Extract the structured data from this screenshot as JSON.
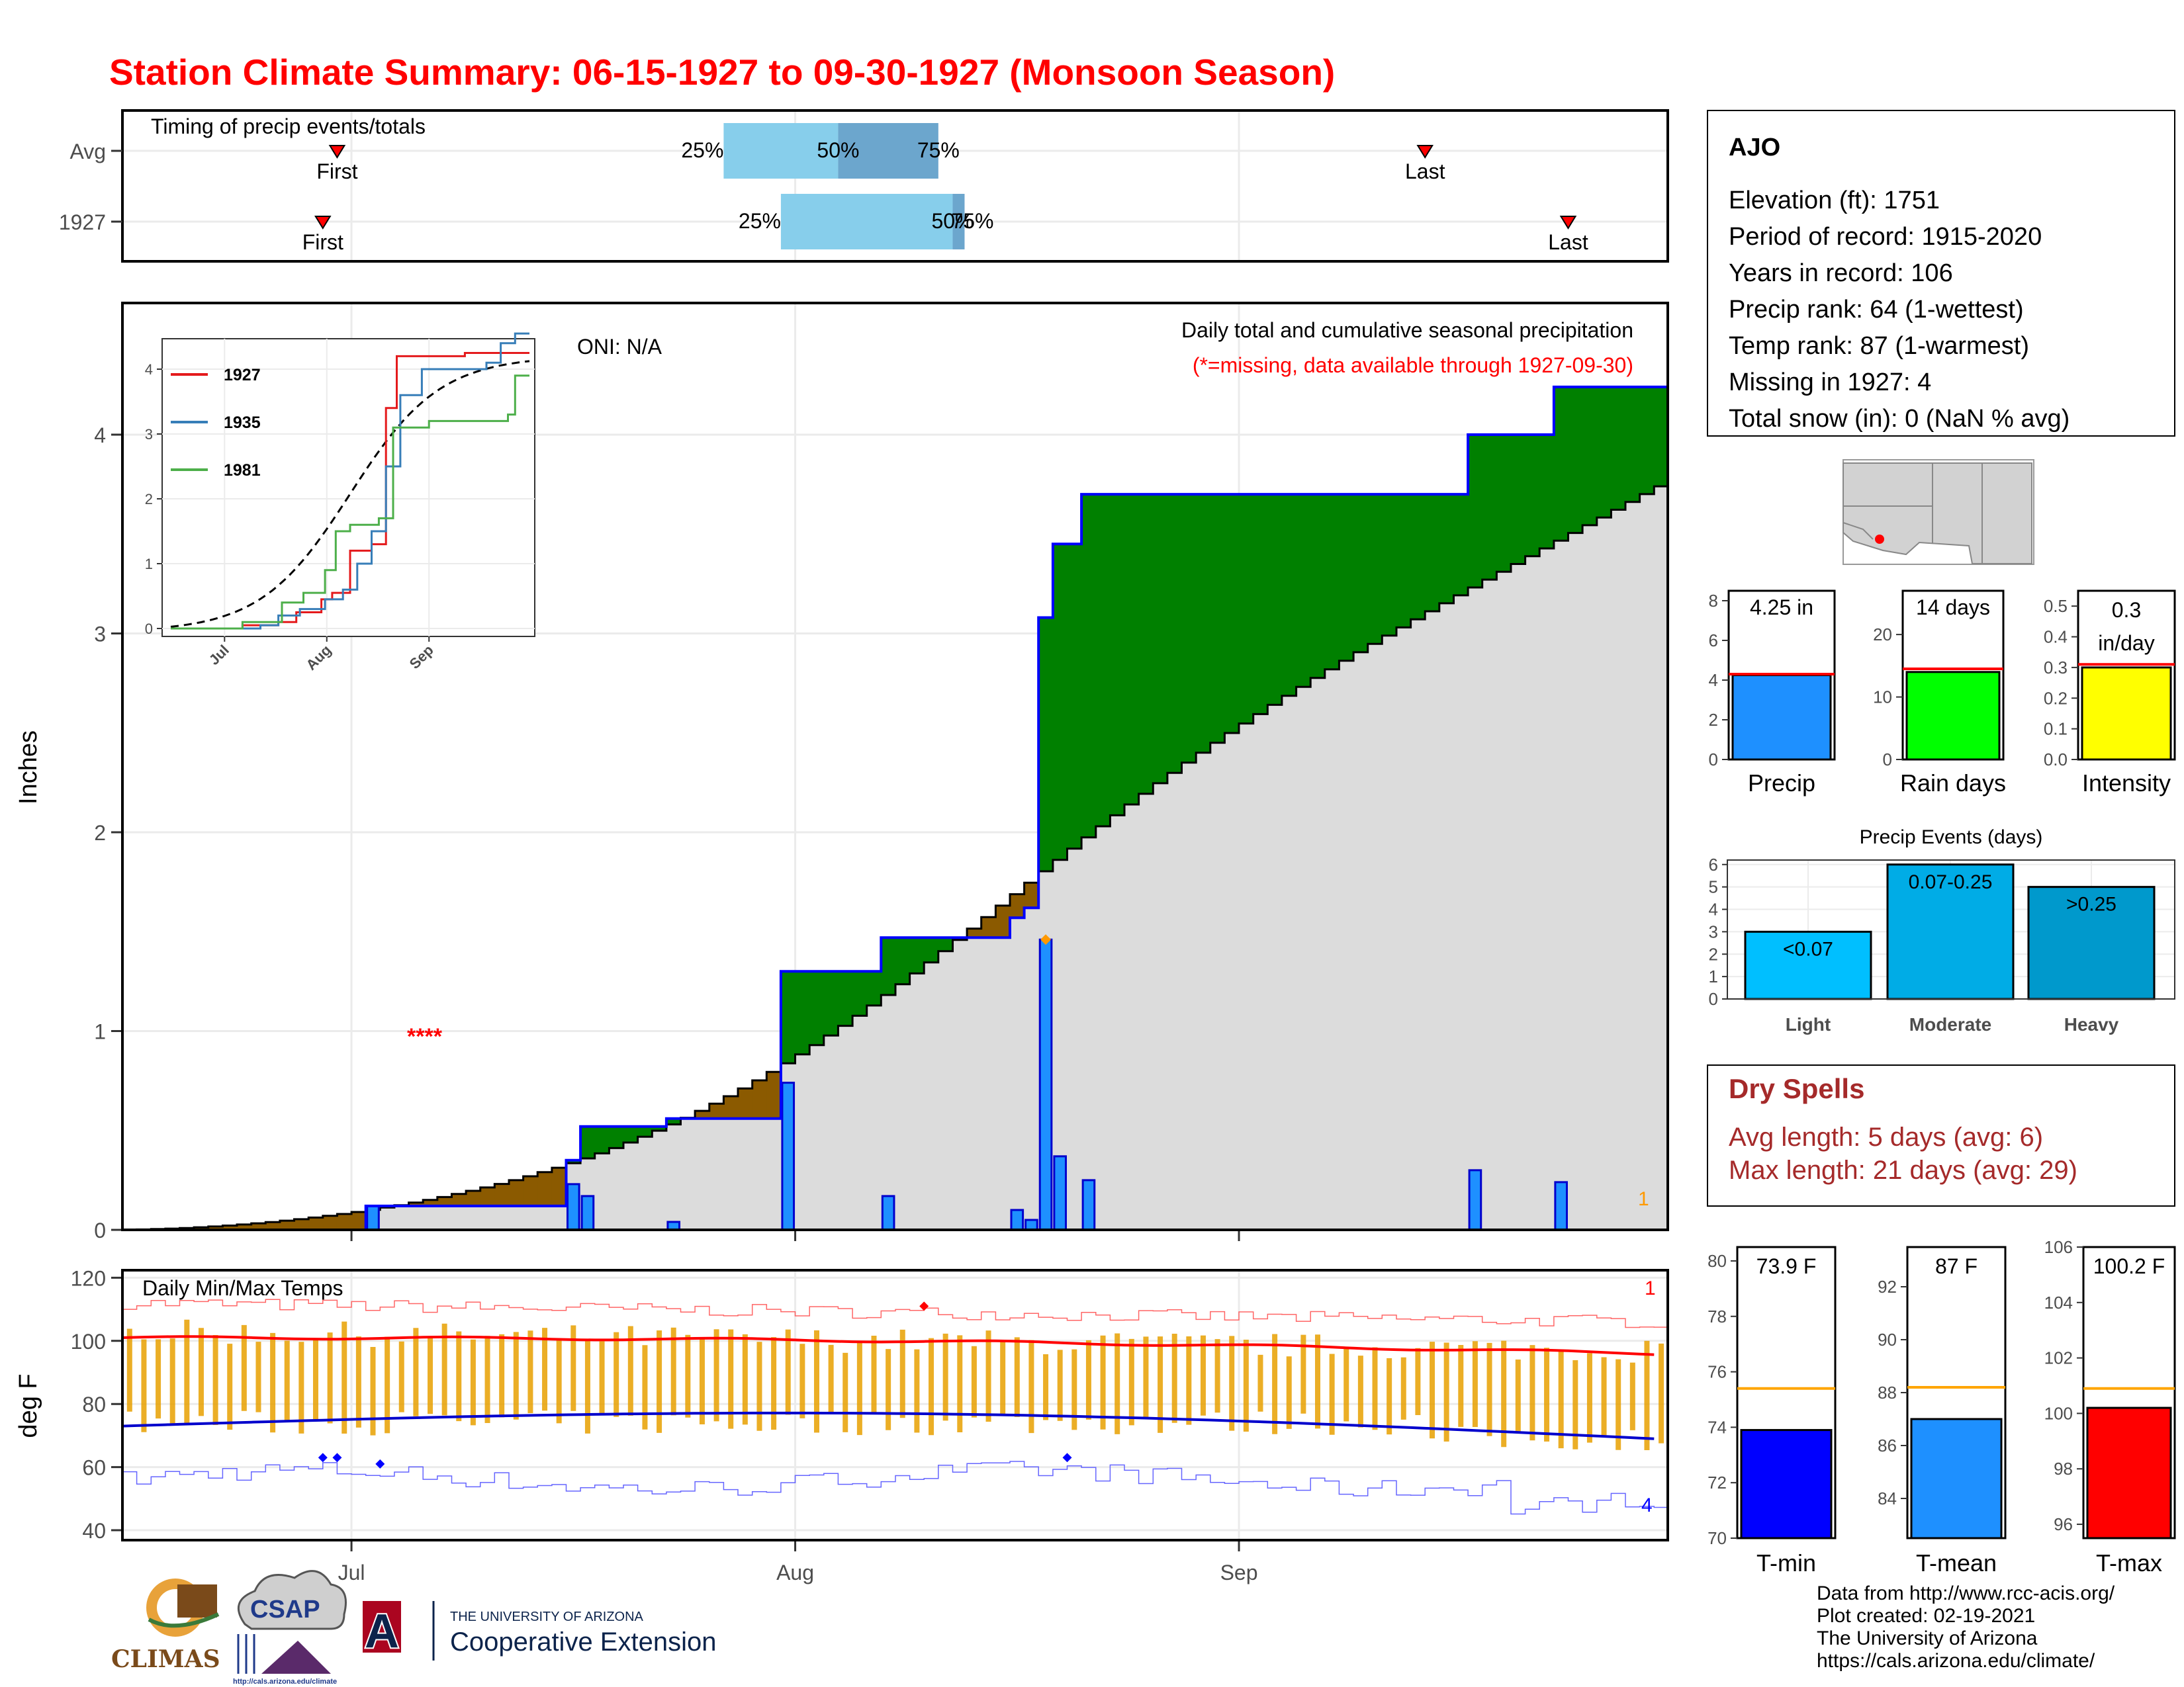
{
  "title": "Station Climate Summary: 06-15-1927 to 09-30-1927 (Monsoon Season)",
  "timing_panel": {
    "label": "Timing of precip events/totals",
    "rows": [
      {
        "name": "Avg",
        "first": "06-30",
        "p25": "07-27",
        "p50": "08-04",
        "p75": "08-11",
        "last": "09-14",
        "first_label": "First",
        "last_label": "Last"
      },
      {
        "name": "1927",
        "first": "06-29",
        "p25": "07-31",
        "p50": "08-12",
        "p75": "08-12",
        "last": "09-24",
        "first_label": "First",
        "last_label": "Last"
      }
    ],
    "pct_labels": [
      "25%",
      "50%",
      "75%"
    ]
  },
  "precip_panel": {
    "ylabel": "Inches",
    "oni": "ONI: N/A",
    "title": "Daily total and cumulative seasonal precipitation",
    "subtitle": "(*=missing, data available through 1927-09-30)",
    "missing_marker": "****",
    "corner_count": "1",
    "yticks": [
      0,
      1,
      2,
      3,
      4
    ],
    "xticks": [
      "Jul",
      "Aug",
      "Sep"
    ],
    "normal_cumulative_end": 3.74,
    "season_total": 4.25,
    "daily_bars": [
      {
        "date": "07-02",
        "value": 0.12
      },
      {
        "date": "07-16",
        "value": 0.23
      },
      {
        "date": "07-17",
        "value": 0.17
      },
      {
        "date": "07-23",
        "value": 0.04
      },
      {
        "date": "07-31",
        "value": 0.74
      },
      {
        "date": "08-07",
        "value": 0.17
      },
      {
        "date": "08-16",
        "value": 0.1
      },
      {
        "date": "08-17",
        "value": 0.05
      },
      {
        "date": "08-18",
        "value": 1.46
      },
      {
        "date": "08-19",
        "value": 0.37
      },
      {
        "date": "08-21",
        "value": 0.25
      },
      {
        "date": "09-17",
        "value": 0.3
      },
      {
        "date": "09-23",
        "value": 0.24
      }
    ],
    "max_marker": {
      "date": "08-18",
      "value": 1.46
    }
  },
  "inset": {
    "legend": [
      {
        "name": "1927",
        "color": "#e41a1c"
      },
      {
        "name": "1935",
        "color": "#377eb8"
      },
      {
        "name": "1981",
        "color": "#4daf4a"
      }
    ],
    "yticks": [
      0,
      1,
      2,
      3,
      4
    ],
    "xticks": [
      "Jul",
      "Aug",
      "Sep"
    ]
  },
  "temp_panel": {
    "label": "Daily Min/Max Temps",
    "ylabel": "deg F",
    "yticks": [
      40,
      60,
      80,
      100,
      120
    ],
    "xticks": [
      "Jul",
      "Aug",
      "Sep"
    ],
    "corner_high": "1",
    "corner_low": "4"
  },
  "station": {
    "name": "AJO",
    "lines": [
      "Elevation (ft): 1751",
      "Period of record: 1915-2020",
      "Years in record: 106",
      "Precip rank: 64 (1-wettest)",
      "Temp rank: 87 (1-warmest)",
      "Missing in 1927: 4",
      "Total snow (in): 0 (NaN % avg)"
    ]
  },
  "summary_bars": [
    {
      "label": "Precip",
      "value_text": "4.25 in",
      "value": 4.25,
      "avg": 4.3,
      "max": 8.5,
      "ticks": [
        0,
        2,
        4,
        6,
        8
      ],
      "color": "#1e90ff"
    },
    {
      "label": "Rain days",
      "value_text": "14 days",
      "value": 14,
      "avg": 14.5,
      "max": 27,
      "ticks": [
        0,
        10,
        20
      ],
      "color": "#00ff00"
    },
    {
      "label": "Intensity",
      "value_text": "0.3 in/day",
      "value_line1": "0.3",
      "value_line2": "in/day",
      "value": 0.3,
      "avg": 0.31,
      "max": 0.55,
      "ticks": [
        "0.0",
        "0.1",
        "0.2",
        "0.3",
        "0.4",
        "0.5"
      ],
      "color": "#ffff00"
    }
  ],
  "events": {
    "title": "Precip Events (days)",
    "bars": [
      {
        "label": "Light",
        "inner": "<0.07",
        "value": 3,
        "color": "#00bfff"
      },
      {
        "label": "Moderate",
        "inner": "0.07-0.25",
        "value": 6,
        "color": "#00ace6"
      },
      {
        "label": "Heavy",
        "inner": ">0.25",
        "value": 5,
        "color": "#0099cc"
      }
    ],
    "yticks": [
      0,
      1,
      2,
      3,
      4,
      5,
      6
    ]
  },
  "dry_spells": {
    "title": "Dry Spells",
    "avg_line": "Avg length: 5 days (avg: 6)",
    "max_line": "Max length: 21 days (avg: 29)"
  },
  "temp_bars": [
    {
      "label": "T-min",
      "value_text": "73.9 F",
      "value": 73.9,
      "avg": 75.4,
      "min": 70,
      "max": 80.5,
      "ticks": [
        70,
        72,
        74,
        76,
        78,
        80
      ],
      "color": "#0000ff"
    },
    {
      "label": "T-mean",
      "value_text": "87 F",
      "value": 87,
      "avg": 88.2,
      "min": 82.5,
      "max": 93.5,
      "ticks": [
        84,
        86,
        88,
        90,
        92
      ],
      "color": "#1e90ff"
    },
    {
      "label": "T-max",
      "value_text": "100.2 F",
      "value": 100.2,
      "avg": 100.9,
      "min": 95.5,
      "max": 106,
      "ticks": [
        96,
        98,
        100,
        102,
        104,
        106
      ],
      "color": "#ff0000"
    }
  ],
  "credits": {
    "lines": [
      "Data from http://www.rcc-acis.org/",
      "Plot created: 02-19-2021",
      "The University of Arizona",
      "https://cals.arizona.edu/climate/"
    ],
    "logo1": "CLIMAS",
    "logo2": "CSAP",
    "logo2_url": "http://cals.arizona.edu/climate",
    "logo3_top": "THE UNIVERSITY OF ARIZONA",
    "logo3_main": "Cooperative Extension",
    "logo3_letter": "A"
  }
}
